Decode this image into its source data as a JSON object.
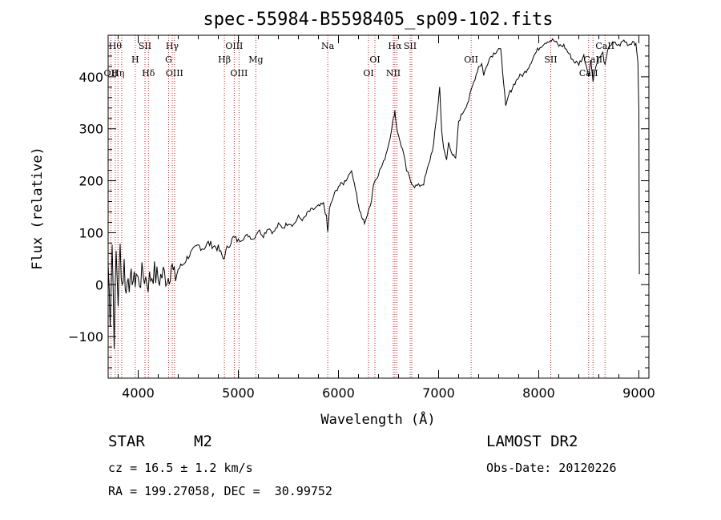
{
  "chart_data": {
    "type": "line",
    "title": "spec-55984-B5598405_sp09-102.fits",
    "xlabel": "Wavelength (Å)",
    "ylabel": "Flux (relative)",
    "xlim": [
      3700,
      9100
    ],
    "ylim": [
      -180,
      480
    ],
    "xticks": [
      4000,
      5000,
      6000,
      7000,
      8000,
      9000
    ],
    "yticks": [
      -100,
      0,
      100,
      200,
      300,
      400
    ],
    "series": [
      {
        "color": "#000000",
        "points": [
          [
            3700,
            40
          ],
          [
            3720,
            -60
          ],
          [
            3740,
            80
          ],
          [
            3760,
            -100
          ],
          [
            3780,
            60
          ],
          [
            3800,
            -30
          ],
          [
            3820,
            70
          ],
          [
            3840,
            0
          ],
          [
            3860,
            40
          ],
          [
            3880,
            -20
          ],
          [
            3900,
            30
          ],
          [
            3920,
            -10
          ],
          [
            3940,
            20
          ],
          [
            3960,
            0
          ],
          [
            3980,
            25
          ],
          [
            4000,
            5
          ],
          [
            4050,
            20
          ],
          [
            4100,
            5
          ],
          [
            4150,
            25
          ],
          [
            4200,
            10
          ],
          [
            4250,
            20
          ],
          [
            4300,
            15
          ],
          [
            4330,
            40
          ],
          [
            4360,
            10
          ],
          [
            4400,
            30
          ],
          [
            4450,
            40
          ],
          [
            4500,
            55
          ],
          [
            4550,
            65
          ],
          [
            4600,
            75
          ],
          [
            4650,
            70
          ],
          [
            4700,
            80
          ],
          [
            4750,
            75
          ],
          [
            4800,
            70
          ],
          [
            4850,
            50
          ],
          [
            4900,
            75
          ],
          [
            4950,
            90
          ],
          [
            5000,
            85
          ],
          [
            5050,
            90
          ],
          [
            5100,
            95
          ],
          [
            5150,
            88
          ],
          [
            5200,
            105
          ],
          [
            5250,
            95
          ],
          [
            5300,
            110
          ],
          [
            5350,
            100
          ],
          [
            5400,
            115
          ],
          [
            5450,
            110
          ],
          [
            5500,
            120
          ],
          [
            5550,
            115
          ],
          [
            5600,
            130
          ],
          [
            5650,
            125
          ],
          [
            5700,
            140
          ],
          [
            5750,
            145
          ],
          [
            5800,
            150
          ],
          [
            5850,
            155
          ],
          [
            5880,
            130
          ],
          [
            5893,
            100
          ],
          [
            5910,
            145
          ],
          [
            5950,
            170
          ],
          [
            6000,
            190
          ],
          [
            6050,
            195
          ],
          [
            6100,
            210
          ],
          [
            6120,
            220
          ],
          [
            6150,
            205
          ],
          [
            6180,
            175
          ],
          [
            6200,
            150
          ],
          [
            6230,
            130
          ],
          [
            6260,
            120
          ],
          [
            6300,
            140
          ],
          [
            6330,
            165
          ],
          [
            6350,
            195
          ],
          [
            6380,
            205
          ],
          [
            6400,
            215
          ],
          [
            6450,
            235
          ],
          [
            6500,
            270
          ],
          [
            6530,
            300
          ],
          [
            6550,
            320
          ],
          [
            6563,
            335
          ],
          [
            6580,
            305
          ],
          [
            6600,
            285
          ],
          [
            6640,
            260
          ],
          [
            6680,
            220
          ],
          [
            6720,
            200
          ],
          [
            6760,
            190
          ],
          [
            6800,
            190
          ],
          [
            6850,
            195
          ],
          [
            6900,
            230
          ],
          [
            6950,
            270
          ],
          [
            6990,
            340
          ],
          [
            7010,
            380
          ],
          [
            7030,
            300
          ],
          [
            7050,
            260
          ],
          [
            7080,
            240
          ],
          [
            7100,
            275
          ],
          [
            7140,
            250
          ],
          [
            7170,
            240
          ],
          [
            7200,
            315
          ],
          [
            7250,
            335
          ],
          [
            7300,
            355
          ],
          [
            7350,
            390
          ],
          [
            7400,
            420
          ],
          [
            7430,
            425
          ],
          [
            7450,
            405
          ],
          [
            7480,
            420
          ],
          [
            7500,
            435
          ],
          [
            7550,
            445
          ],
          [
            7600,
            455
          ],
          [
            7620,
            450
          ],
          [
            7650,
            390
          ],
          [
            7670,
            340
          ],
          [
            7700,
            365
          ],
          [
            7750,
            385
          ],
          [
            7800,
            400
          ],
          [
            7850,
            405
          ],
          [
            7900,
            420
          ],
          [
            7950,
            440
          ],
          [
            8000,
            455
          ],
          [
            8050,
            465
          ],
          [
            8100,
            470
          ],
          [
            8150,
            470
          ],
          [
            8200,
            460
          ],
          [
            8250,
            460
          ],
          [
            8300,
            445
          ],
          [
            8350,
            430
          ],
          [
            8400,
            425
          ],
          [
            8450,
            440
          ],
          [
            8498,
            405
          ],
          [
            8520,
            430
          ],
          [
            8542,
            395
          ],
          [
            8570,
            420
          ],
          [
            8600,
            435
          ],
          [
            8640,
            445
          ],
          [
            8662,
            420
          ],
          [
            8700,
            460
          ],
          [
            8750,
            465
          ],
          [
            8800,
            460
          ],
          [
            8850,
            470
          ],
          [
            8900,
            462
          ],
          [
            8950,
            470
          ],
          [
            8970,
            460
          ],
          [
            8990,
            430
          ],
          [
            9000,
            330
          ],
          [
            9005,
            20
          ]
        ]
      }
    ],
    "lines": [
      {
        "w": 3771,
        "label": "Hθ",
        "row": 0
      },
      {
        "w": 3798,
        "label": "Hη",
        "row": 2
      },
      {
        "w": 3727,
        "label": "OII",
        "row": 2
      },
      {
        "w": 3835,
        "label": "",
        "row": 2
      },
      {
        "w": 3970,
        "label": "H",
        "row": 1
      },
      {
        "w": 4068,
        "label": "SII",
        "row": 0
      },
      {
        "w": 4102,
        "label": "Hδ",
        "row": 2
      },
      {
        "w": 4304,
        "label": "G",
        "row": 1
      },
      {
        "w": 4340,
        "label": "Hγ",
        "row": 0
      },
      {
        "w": 4363,
        "label": "OIII",
        "row": 2
      },
      {
        "w": 4861,
        "label": "Hβ",
        "row": 1
      },
      {
        "w": 4959,
        "label": "OIII",
        "row": 0
      },
      {
        "w": 5007,
        "label": "OIII",
        "row": 2
      },
      {
        "w": 5175,
        "label": "Mg",
        "row": 1
      },
      {
        "w": 5893,
        "label": "Na",
        "row": 0
      },
      {
        "w": 6300,
        "label": "OI",
        "row": 2
      },
      {
        "w": 6364,
        "label": "OI",
        "row": 1
      },
      {
        "w": 6548,
        "label": "NII",
        "row": 2
      },
      {
        "w": 6563,
        "label": "Hα",
        "row": 0
      },
      {
        "w": 6583,
        "label": "",
        "row": 2
      },
      {
        "w": 6716,
        "label": "SII",
        "row": 0
      },
      {
        "w": 6731,
        "label": "",
        "row": 0
      },
      {
        "w": 7325,
        "label": "OII",
        "row": 1
      },
      {
        "w": 8120,
        "label": "SII",
        "row": 1
      },
      {
        "w": 8498,
        "label": "CaII",
        "row": 2
      },
      {
        "w": 8542,
        "label": "CaII",
        "row": 1
      },
      {
        "w": 8662,
        "label": "CaII",
        "row": 0
      }
    ]
  },
  "info": {
    "object_class": "STAR",
    "subclass": "M2",
    "cz": "cz = 16.5 ± 1.2 km/s",
    "radec": "RA = 199.27058, DEC =  30.99752",
    "survey": "LAMOST DR2",
    "obs_date": "Obs-Date: 20120226"
  },
  "colors": {
    "line_marker": "#cc2222",
    "spectrum": "#000000",
    "background": "#ffffff"
  }
}
